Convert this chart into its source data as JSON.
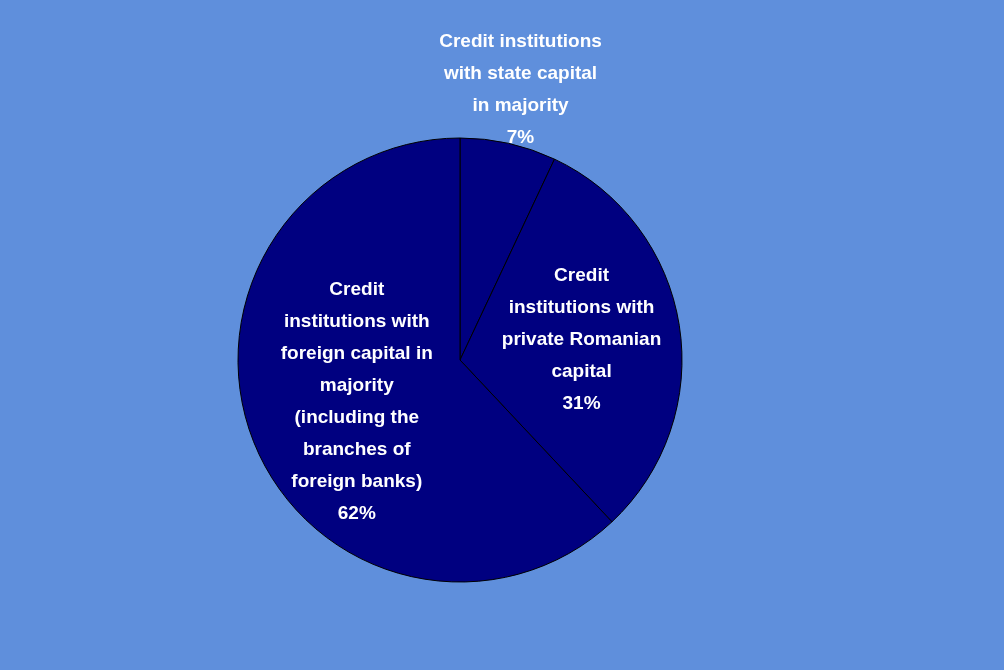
{
  "chart_data": {
    "type": "pie",
    "categories": [
      "Credit institutions with state capital in majority",
      "Credit institutions with private Romanian capital",
      "Credit institutions with foreign capital in majority (including the branches of foreign banks)"
    ],
    "values": [
      7,
      31,
      62
    ],
    "value_labels": [
      "7%",
      "31%",
      "62%"
    ],
    "colors": [
      "#000080",
      "#000080",
      "#000080"
    ]
  }
}
